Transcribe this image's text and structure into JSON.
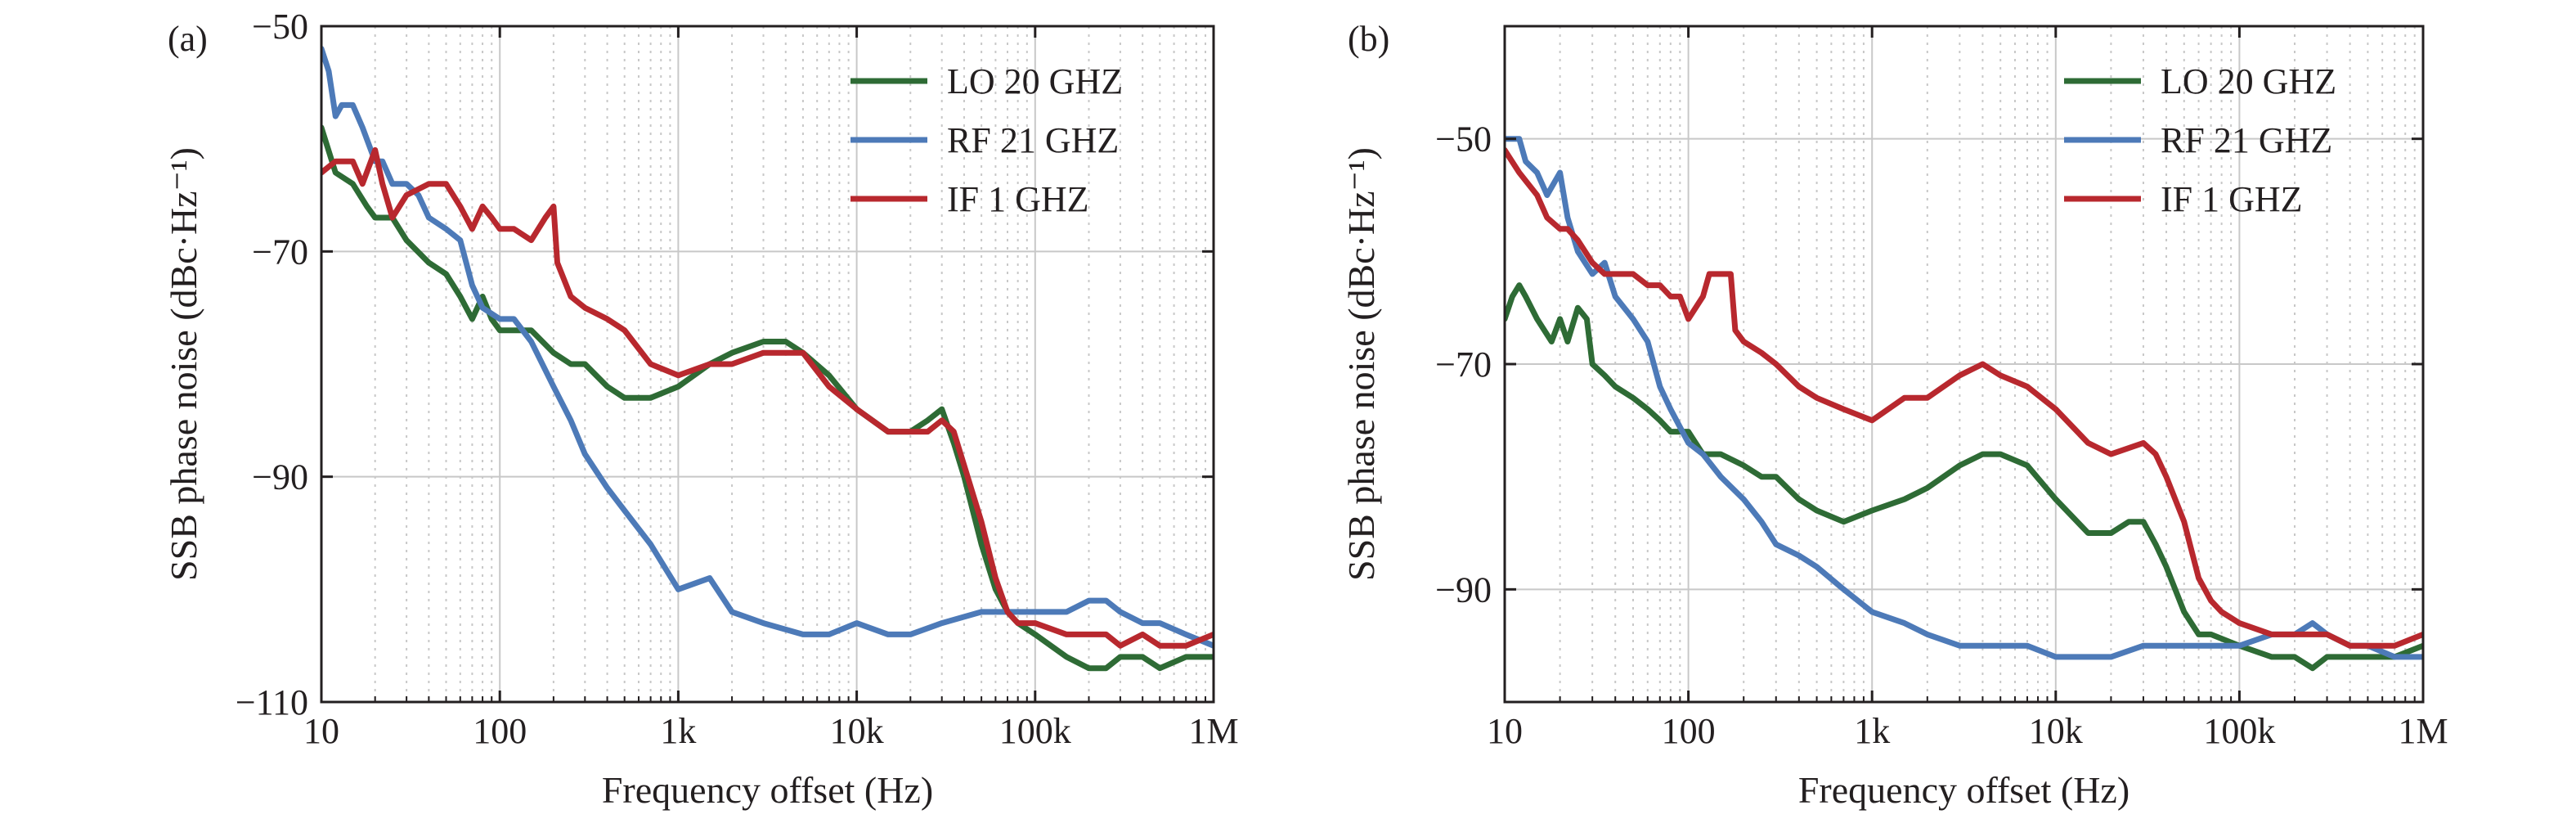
{
  "figure": {
    "colors": {
      "lo": "#2e6b35",
      "rf": "#4d7ab8",
      "if": "#b8282e",
      "grid": "#c8c8c8",
      "axis": "#231f20"
    }
  },
  "chart_data": [
    {
      "type": "line",
      "panel_label": "(a)",
      "x_scale": "log",
      "xlim": [
        10,
        1000000
      ],
      "ylim": [
        -110,
        -50
      ],
      "xlabel": "Frequency offset (Hz)",
      "ylabel": "SSB phase noise (dBc·Hz⁻¹)",
      "x_ticks": [
        10,
        100,
        1000,
        10000,
        100000,
        1000000
      ],
      "x_tick_labels": [
        "10",
        "100",
        "1k",
        "10k",
        "100k",
        "1M"
      ],
      "y_ticks": [
        -50,
        -70,
        -90,
        -110
      ],
      "y_tick_labels": [
        "−50",
        "−70",
        "−90",
        "−110"
      ],
      "grid": true,
      "legend_position": "top-right",
      "series": [
        {
          "name": "LO 20 GHZ",
          "color_key": "lo",
          "x": [
            10,
            12,
            15,
            18,
            20,
            25,
            30,
            40,
            50,
            60,
            70,
            80,
            90,
            100,
            120,
            150,
            200,
            250,
            300,
            400,
            500,
            700,
            1000,
            1500,
            2000,
            3000,
            4000,
            5000,
            7000,
            10000,
            15000,
            20000,
            25000,
            30000,
            35000,
            40000,
            50000,
            60000,
            70000,
            80000,
            100000,
            150000,
            200000,
            250000,
            300000,
            400000,
            500000,
            700000,
            1000000
          ],
          "y": [
            -59,
            -63,
            -64,
            -66,
            -67,
            -67,
            -69,
            -71,
            -72,
            -74,
            -76,
            -74,
            -76,
            -77,
            -77,
            -77,
            -79,
            -80,
            -80,
            -82,
            -83,
            -83,
            -82,
            -80,
            -79,
            -78,
            -78,
            -79,
            -81,
            -84,
            -86,
            -86,
            -85,
            -84,
            -87,
            -90,
            -96,
            -100,
            -102,
            -103,
            -104,
            -106,
            -107,
            -107,
            -106,
            -106,
            -107,
            -106,
            -106
          ]
        },
        {
          "name": "RF 21 GHZ",
          "color_key": "rf",
          "x": [
            10,
            11,
            12,
            13,
            15,
            17,
            20,
            22,
            25,
            30,
            35,
            40,
            50,
            60,
            70,
            80,
            100,
            120,
            150,
            200,
            250,
            300,
            400,
            500,
            700,
            1000,
            1500,
            2000,
            3000,
            5000,
            7000,
            10000,
            15000,
            20000,
            30000,
            50000,
            70000,
            100000,
            150000,
            200000,
            250000,
            300000,
            400000,
            500000,
            700000,
            1000000
          ],
          "y": [
            -52,
            -54,
            -58,
            -57,
            -57,
            -59,
            -62,
            -62,
            -64,
            -64,
            -65,
            -67,
            -68,
            -69,
            -73,
            -75,
            -76,
            -76,
            -78,
            -82,
            -85,
            -88,
            -91,
            -93,
            -96,
            -100,
            -99,
            -102,
            -103,
            -104,
            -104,
            -103,
            -104,
            -104,
            -103,
            -102,
            -102,
            -102,
            -102,
            -101,
            -101,
            -102,
            -103,
            -103,
            -104,
            -105
          ]
        },
        {
          "name": "IF 1 GHZ",
          "color_key": "if",
          "x": [
            10,
            12,
            15,
            17,
            20,
            22,
            25,
            30,
            40,
            50,
            60,
            70,
            80,
            90,
            100,
            120,
            150,
            180,
            200,
            210,
            250,
            300,
            400,
            500,
            700,
            1000,
            1500,
            2000,
            3000,
            4000,
            5000,
            7000,
            10000,
            15000,
            20000,
            25000,
            30000,
            35000,
            40000,
            50000,
            60000,
            70000,
            80000,
            100000,
            150000,
            200000,
            250000,
            300000,
            400000,
            500000,
            700000,
            1000000
          ],
          "y": [
            -63,
            -62,
            -62,
            -64,
            -61,
            -64,
            -67,
            -65,
            -64,
            -64,
            -66,
            -68,
            -66,
            -67,
            -68,
            -68,
            -69,
            -67,
            -66,
            -71,
            -74,
            -75,
            -76,
            -77,
            -80,
            -81,
            -80,
            -80,
            -79,
            -79,
            -79,
            -82,
            -84,
            -86,
            -86,
            -86,
            -85,
            -86,
            -89,
            -94,
            -99,
            -102,
            -103,
            -103,
            -104,
            -104,
            -104,
            -105,
            -104,
            -105,
            -105,
            -104
          ]
        }
      ]
    },
    {
      "type": "line",
      "panel_label": "(b)",
      "x_scale": "log",
      "xlim": [
        10,
        1000000
      ],
      "ylim": [
        -100,
        -40
      ],
      "xlabel": "Frequency offset (Hz)",
      "ylabel": "SSB phase noise (dBc·Hz⁻¹)",
      "x_ticks": [
        10,
        100,
        1000,
        10000,
        100000,
        1000000
      ],
      "x_tick_labels": [
        "10",
        "100",
        "1k",
        "10k",
        "100k",
        "1M"
      ],
      "y_ticks": [
        -50,
        -70,
        -90
      ],
      "y_tick_labels": [
        "−50",
        "−70",
        "−90"
      ],
      "grid": true,
      "legend_position": "top-right",
      "series": [
        {
          "name": "LO 20 GHZ",
          "color_key": "lo",
          "x": [
            10,
            11,
            12,
            13,
            15,
            18,
            20,
            22,
            25,
            28,
            30,
            35,
            40,
            50,
            60,
            70,
            80,
            100,
            120,
            150,
            200,
            250,
            300,
            400,
            500,
            700,
            1000,
            1500,
            2000,
            3000,
            4000,
            5000,
            7000,
            10000,
            15000,
            20000,
            25000,
            30000,
            35000,
            40000,
            50000,
            60000,
            70000,
            100000,
            150000,
            200000,
            250000,
            300000,
            400000,
            500000,
            700000,
            1000000
          ],
          "y": [
            -66,
            -64,
            -63,
            -64,
            -66,
            -68,
            -66,
            -68,
            -65,
            -66,
            -70,
            -71,
            -72,
            -73,
            -74,
            -75,
            -76,
            -76,
            -78,
            -78,
            -79,
            -80,
            -80,
            -82,
            -83,
            -84,
            -83,
            -82,
            -81,
            -79,
            -78,
            -78,
            -79,
            -82,
            -85,
            -85,
            -84,
            -84,
            -86,
            -88,
            -92,
            -94,
            -94,
            -95,
            -96,
            -96,
            -97,
            -96,
            -96,
            -96,
            -96,
            -95
          ]
        },
        {
          "name": "RF 21 GHZ",
          "color_key": "rf",
          "x": [
            10,
            11,
            12,
            13,
            15,
            17,
            20,
            22,
            25,
            30,
            35,
            40,
            50,
            60,
            70,
            80,
            100,
            120,
            150,
            200,
            250,
            300,
            400,
            500,
            700,
            1000,
            1500,
            2000,
            3000,
            5000,
            7000,
            10000,
            15000,
            20000,
            30000,
            50000,
            70000,
            100000,
            150000,
            200000,
            250000,
            300000,
            400000,
            500000,
            700000,
            1000000
          ],
          "y": [
            -50,
            -50,
            -50,
            -52,
            -53,
            -55,
            -53,
            -57,
            -60,
            -62,
            -61,
            -64,
            -66,
            -68,
            -72,
            -74,
            -77,
            -78,
            -80,
            -82,
            -84,
            -86,
            -87,
            -88,
            -90,
            -92,
            -93,
            -94,
            -95,
            -95,
            -95,
            -96,
            -96,
            -96,
            -95,
            -95,
            -95,
            -95,
            -94,
            -94,
            -93,
            -94,
            -95,
            -95,
            -96,
            -96
          ]
        },
        {
          "name": "IF 1 GHZ",
          "color_key": "if",
          "x": [
            10,
            12,
            15,
            17,
            20,
            22,
            25,
            30,
            35,
            40,
            50,
            60,
            70,
            80,
            90,
            100,
            120,
            130,
            140,
            170,
            180,
            200,
            250,
            300,
            400,
            500,
            700,
            1000,
            1500,
            2000,
            3000,
            4000,
            5000,
            7000,
            10000,
            15000,
            20000,
            30000,
            35000,
            40000,
            50000,
            60000,
            70000,
            80000,
            100000,
            150000,
            200000,
            250000,
            300000,
            400000,
            500000,
            700000,
            1000000
          ],
          "y": [
            -51,
            -53,
            -55,
            -57,
            -58,
            -58,
            -59,
            -61,
            -62,
            -62,
            -62,
            -63,
            -63,
            -64,
            -64,
            -66,
            -64,
            -62,
            -62,
            -62,
            -67,
            -68,
            -69,
            -70,
            -72,
            -73,
            -74,
            -75,
            -73,
            -73,
            -71,
            -70,
            -71,
            -72,
            -74,
            -77,
            -78,
            -77,
            -78,
            -80,
            -84,
            -89,
            -91,
            -92,
            -93,
            -94,
            -94,
            -94,
            -94,
            -95,
            -95,
            -95,
            -94
          ]
        }
      ]
    }
  ]
}
